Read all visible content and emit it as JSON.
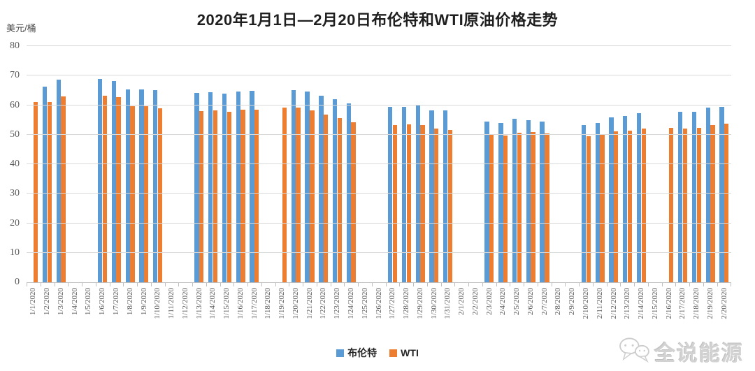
{
  "title": "2020年1月1日—2月20日布伦特和WTI原油价格走势",
  "y_axis_unit": "美元/桶",
  "colors": {
    "brent": "#5B9BD5",
    "wti": "#ED7D31",
    "gridline": "#D9D9D9",
    "axis_line": "#BFBFBF",
    "axis_text": "#595959",
    "title_text": "#1F1F1F",
    "watermark": "#CBCBCB"
  },
  "legend": {
    "brent_label": "布伦特",
    "wti_label": "WTI"
  },
  "watermark": {
    "text": "全说能源",
    "icon": "speech-bubbles-icon"
  },
  "chart_data": {
    "type": "bar",
    "title": "2020年1月1日—2月20日布伦特和WTI原油价格走势",
    "xlabel": "",
    "ylabel": "美元/桶",
    "ylim": [
      0,
      80
    ],
    "ytick_interval": 10,
    "grid": true,
    "legend_position": "bottom",
    "categories": [
      "1/1/2020",
      "1/2/2020",
      "1/3/2020",
      "1/4/2020",
      "1/5/2020",
      "1/6/2020",
      "1/7/2020",
      "1/8/2020",
      "1/9/2020",
      "1/10/2020",
      "1/11/2020",
      "1/12/2020",
      "1/13/2020",
      "1/14/2020",
      "1/15/2020",
      "1/16/2020",
      "1/17/2020",
      "1/18/2020",
      "1/19/2020",
      "1/20/2020",
      "1/21/2020",
      "1/22/2020",
      "1/23/2020",
      "1/24/2020",
      "1/25/2020",
      "1/26/2020",
      "1/27/2020",
      "1/28/2020",
      "1/29/2020",
      "1/30/2020",
      "1/31/2020",
      "2/1/2020",
      "2/2/2020",
      "2/3/2020",
      "2/4/2020",
      "2/5/2020",
      "2/6/2020",
      "2/7/2020",
      "2/8/2020",
      "2/9/2020",
      "2/10/2020",
      "2/11/2020",
      "2/12/2020",
      "2/13/2020",
      "2/14/2020",
      "2/15/2020",
      "2/16/2020",
      "2/17/2020",
      "2/18/2020",
      "2/19/2020",
      "2/20/2020"
    ],
    "series": [
      {
        "name": "布伦特",
        "color": "#5B9BD5",
        "values": [
          null,
          66.25,
          68.6,
          null,
          null,
          68.91,
          68.27,
          65.44,
          65.37,
          64.98,
          null,
          null,
          64.2,
          64.49,
          64.0,
          64.62,
          64.85,
          null,
          null,
          65.2,
          64.59,
          63.21,
          62.04,
          60.69,
          null,
          null,
          59.32,
          59.51,
          59.81,
          58.29,
          58.16,
          null,
          null,
          54.45,
          53.96,
          55.28,
          54.93,
          54.47,
          null,
          null,
          53.27,
          54.01,
          55.79,
          56.34,
          57.32,
          null,
          null,
          57.67,
          57.75,
          59.12,
          59.31
        ]
      },
      {
        "name": "WTI",
        "color": "#ED7D31",
        "values": [
          61.06,
          61.18,
          63.05,
          null,
          null,
          63.27,
          62.7,
          59.61,
          59.56,
          59.04,
          null,
          null,
          58.08,
          58.23,
          57.81,
          58.52,
          58.54,
          null,
          59.2,
          59.09,
          58.34,
          56.74,
          55.59,
          54.19,
          null,
          null,
          53.14,
          53.48,
          53.33,
          52.14,
          51.56,
          null,
          null,
          50.11,
          49.61,
          50.75,
          50.95,
          50.32,
          null,
          null,
          49.57,
          49.94,
          51.17,
          51.42,
          52.05,
          null,
          52.2,
          52.1,
          52.3,
          53.29,
          53.78
        ]
      }
    ]
  }
}
